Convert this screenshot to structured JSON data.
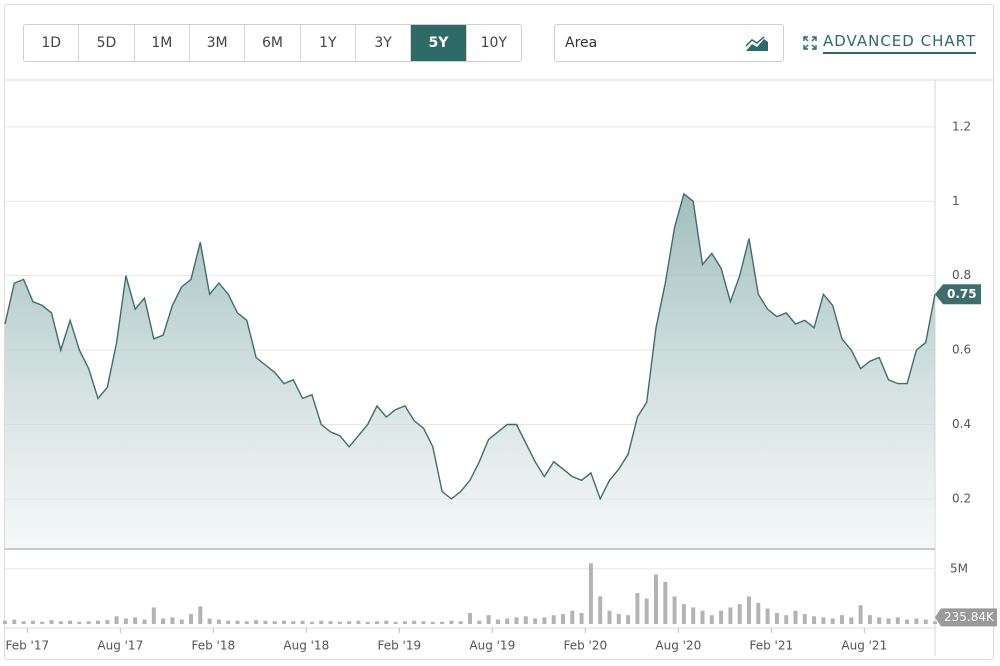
{
  "toolbar": {
    "ranges": [
      "1D",
      "5D",
      "1M",
      "3M",
      "6M",
      "1Y",
      "3Y",
      "5Y",
      "10Y"
    ],
    "active_index": 7,
    "chart_type": "Area",
    "advanced": "ADVANCED CHART"
  },
  "chart_data": {
    "type": "area",
    "grid": true,
    "x": [
      2016.96,
      2017.01,
      2017.06,
      2017.11,
      2017.16,
      2017.21,
      2017.26,
      2017.31,
      2017.36,
      2017.41,
      2017.46,
      2017.51,
      2017.56,
      2017.61,
      2017.66,
      2017.71,
      2017.76,
      2017.81,
      2017.86,
      2017.91,
      2017.96,
      2018.01,
      2018.06,
      2018.11,
      2018.16,
      2018.21,
      2018.26,
      2018.31,
      2018.36,
      2018.41,
      2018.46,
      2018.51,
      2018.56,
      2018.61,
      2018.66,
      2018.71,
      2018.76,
      2018.81,
      2018.86,
      2018.91,
      2018.96,
      2019.01,
      2019.06,
      2019.11,
      2019.16,
      2019.21,
      2019.26,
      2019.31,
      2019.36,
      2019.41,
      2019.46,
      2019.51,
      2019.56,
      2019.61,
      2019.66,
      2019.71,
      2019.76,
      2019.81,
      2019.86,
      2019.91,
      2019.96,
      2020.01,
      2020.06,
      2020.11,
      2020.16,
      2020.21,
      2020.26,
      2020.31,
      2020.36,
      2020.41,
      2020.46,
      2020.51,
      2020.56,
      2020.61,
      2020.66,
      2020.71,
      2020.76,
      2020.81,
      2020.86,
      2020.91,
      2020.96,
      2021.01,
      2021.06,
      2021.11,
      2021.16,
      2021.21,
      2021.26,
      2021.31,
      2021.36,
      2021.41,
      2021.46,
      2021.51,
      2021.56,
      2021.61,
      2021.66,
      2021.71,
      2021.76,
      2021.81,
      2021.86,
      2021.91,
      2021.96
    ],
    "xlim": [
      2016.96,
      2021.96
    ],
    "xticks": [
      {
        "value": 2017.08,
        "label": "Feb '17"
      },
      {
        "value": 2017.58,
        "label": "Aug '17"
      },
      {
        "value": 2018.08,
        "label": "Feb '18"
      },
      {
        "value": 2018.58,
        "label": "Aug '18"
      },
      {
        "value": 2019.08,
        "label": "Feb '19"
      },
      {
        "value": 2019.58,
        "label": "Aug '19"
      },
      {
        "value": 2020.08,
        "label": "Feb '20"
      },
      {
        "value": 2020.58,
        "label": "Aug '20"
      },
      {
        "value": 2021.08,
        "label": "Feb '21"
      },
      {
        "value": 2021.58,
        "label": "Aug '21"
      }
    ],
    "ylim": [
      0.068,
      1.326
    ],
    "yticks": [
      0.2,
      0.4,
      0.6,
      0.8,
      1,
      1.2
    ],
    "y2lim": [
      0,
      6700000
    ],
    "y2ticks": [
      {
        "value": 5000000,
        "label": "5M"
      }
    ],
    "series": [
      {
        "color": "#3e6e6b",
        "values": [
          0.67,
          0.78,
          0.79,
          0.73,
          0.72,
          0.7,
          0.6,
          0.68,
          0.6,
          0.55,
          0.47,
          0.5,
          0.62,
          0.8,
          0.71,
          0.74,
          0.63,
          0.64,
          0.72,
          0.77,
          0.79,
          0.89,
          0.75,
          0.78,
          0.75,
          0.7,
          0.68,
          0.58,
          0.56,
          0.54,
          0.51,
          0.52,
          0.47,
          0.48,
          0.4,
          0.38,
          0.37,
          0.34,
          0.37,
          0.4,
          0.45,
          0.42,
          0.44,
          0.45,
          0.41,
          0.39,
          0.34,
          0.22,
          0.2,
          0.22,
          0.25,
          0.3,
          0.36,
          0.38,
          0.4,
          0.4,
          0.35,
          0.3,
          0.26,
          0.3,
          0.28,
          0.26,
          0.25,
          0.27,
          0.2,
          0.25,
          0.28,
          0.32,
          0.42,
          0.46,
          0.66,
          0.78,
          0.93,
          1.02,
          1.0,
          0.83,
          0.86,
          0.82,
          0.73,
          0.8,
          0.9,
          0.75,
          0.71,
          0.69,
          0.7,
          0.67,
          0.68,
          0.66,
          0.75,
          0.72,
          0.63,
          0.6,
          0.55,
          0.57,
          0.58,
          0.52,
          0.51,
          0.51,
          0.6,
          0.62,
          0.75
        ]
      },
      {
        "type": "bar",
        "axis": "y2",
        "color": "#b3b3b3",
        "last_value_label": "235.84K",
        "values": [
          300000,
          400000,
          250000,
          300000,
          200000,
          350000,
          250000,
          300000,
          200000,
          250000,
          300000,
          350000,
          700000,
          500000,
          600000,
          400000,
          1500000,
          500000,
          600000,
          400000,
          900000,
          1600000,
          500000,
          400000,
          300000,
          300000,
          250000,
          350000,
          300000,
          250000,
          300000,
          250000,
          300000,
          200000,
          300000,
          250000,
          200000,
          250000,
          300000,
          200000,
          250000,
          300000,
          200000,
          250000,
          300000,
          250000,
          200000,
          200000,
          300000,
          250000,
          1000000,
          300000,
          800000,
          400000,
          500000,
          600000,
          700000,
          500000,
          600000,
          800000,
          900000,
          1200000,
          1000000,
          5500000,
          2500000,
          1200000,
          900000,
          800000,
          2800000,
          2300000,
          4500000,
          3800000,
          2500000,
          1800000,
          1500000,
          1200000,
          800000,
          1200000,
          1500000,
          1800000,
          2500000,
          1900000,
          1400000,
          1000000,
          800000,
          1200000,
          900000,
          700000,
          600000,
          500000,
          800000,
          600000,
          1700000,
          800000,
          600000,
          500000,
          600000,
          400000,
          500000,
          400000,
          235840
        ]
      }
    ]
  }
}
